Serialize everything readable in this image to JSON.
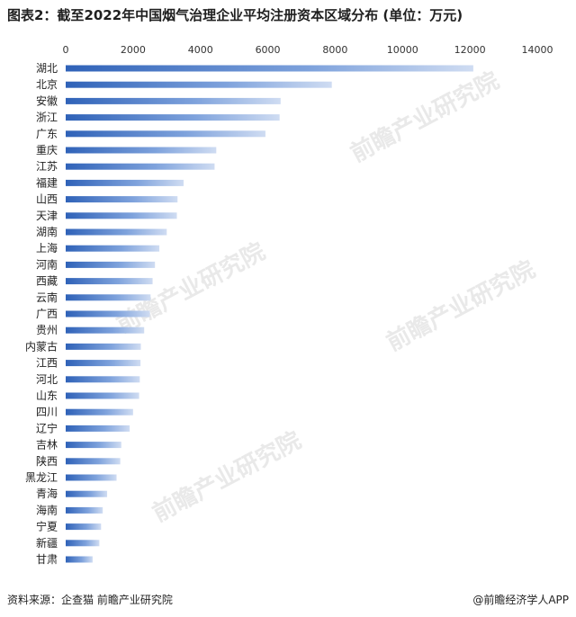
{
  "header": {
    "title": "图表2：截至2022年中国烟气治理企业平均注册资本区域分布 (单位：万元)"
  },
  "footer": {
    "source": "资料来源：企查猫 前瞻产业研究院",
    "brand": "@前瞻经济学人APP"
  },
  "watermark": "前瞻产业研究院",
  "chart_data": {
    "type": "bar",
    "orientation": "horizontal",
    "title": "图表2：截至2022年中国烟气治理企业平均注册资本区域分布 (单位：万元)",
    "xlim": [
      0,
      14000
    ],
    "xticks": [
      0,
      2000,
      4000,
      6000,
      8000,
      10000,
      12000,
      14000
    ],
    "tick_labels": [
      "0",
      "2000",
      "4000",
      "6000",
      "8000",
      "10000",
      "12000",
      "14000"
    ],
    "x_axis_position": "top",
    "grid": false,
    "bar_color": "#3a6fc4",
    "categories": [
      "湖北",
      "北京",
      "安徽",
      "浙江",
      "广东",
      "重庆",
      "江苏",
      "福建",
      "山西",
      "天津",
      "湖南",
      "上海",
      "河南",
      "西藏",
      "云南",
      "广西",
      "贵州",
      "内蒙古",
      "江西",
      "河北",
      "山东",
      "四川",
      "辽宁",
      "吉林",
      "陕西",
      "黑龙江",
      "青海",
      "海南",
      "宁夏",
      "新疆",
      "甘肃"
    ],
    "values": [
      12100,
      7900,
      6380,
      6350,
      5930,
      4470,
      4420,
      3500,
      3320,
      3300,
      3000,
      2780,
      2650,
      2580,
      2520,
      2500,
      2330,
      2230,
      2220,
      2200,
      2180,
      2000,
      1900,
      1650,
      1620,
      1510,
      1230,
      1100,
      1050,
      1000,
      800
    ]
  }
}
